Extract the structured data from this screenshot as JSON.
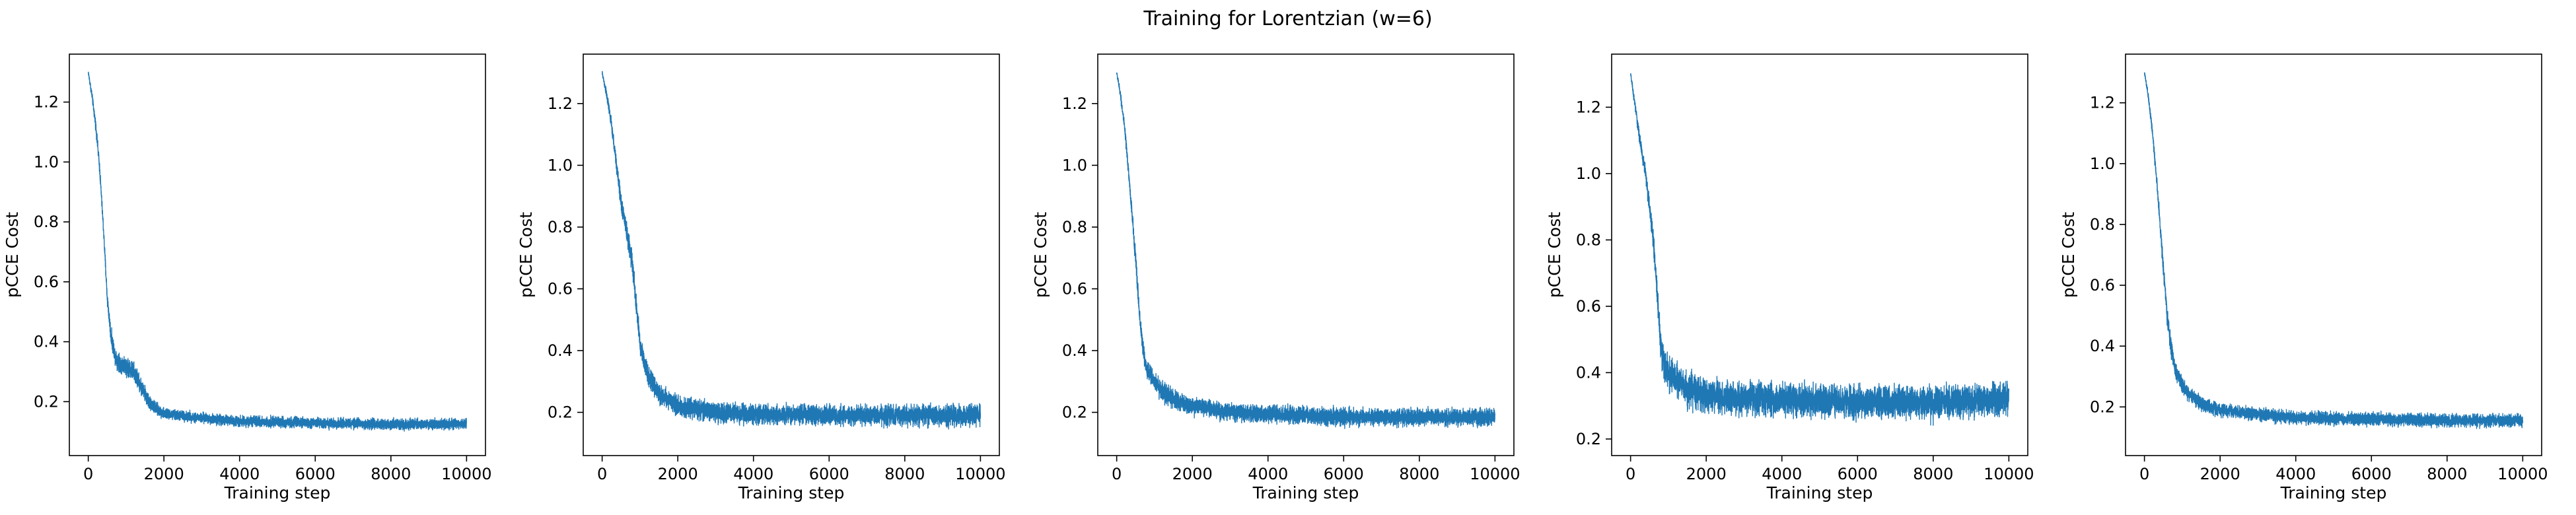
{
  "figure": {
    "suptitle": "Training for Lorentzian (w=6)",
    "line_color": "#1f77b4"
  },
  "chart_data": [
    {
      "type": "line",
      "xlabel": "Training step",
      "ylabel": "pCCE Cost",
      "xlim": [
        -500,
        10500
      ],
      "ylim": [
        0.02,
        1.36
      ],
      "xticks": [
        0,
        2000,
        4000,
        6000,
        8000,
        10000
      ],
      "yticks": [
        0.2,
        0.4,
        0.6,
        0.8,
        1.0,
        1.2
      ],
      "ytick_labels": [
        "0.2",
        "0.4",
        "0.6",
        "0.8",
        "1.0",
        "1.2"
      ],
      "grid": false,
      "series": [
        {
          "x": [
            0,
            100,
            200,
            300,
            400,
            500,
            600,
            700,
            800,
            1000,
            1200,
            1400,
            1600,
            1800,
            2000,
            3000,
            4000,
            6000,
            8000,
            10000
          ],
          "y": [
            1.3,
            1.22,
            1.12,
            0.98,
            0.78,
            0.55,
            0.42,
            0.36,
            0.33,
            0.32,
            0.3,
            0.25,
            0.2,
            0.175,
            0.16,
            0.145,
            0.135,
            0.128,
            0.125,
            0.125
          ],
          "band_spread": [
            0.01,
            0.02,
            0.025,
            0.03,
            0.03,
            0.035,
            0.04,
            0.04,
            0.045,
            0.045,
            0.045,
            0.04,
            0.035,
            0.03,
            0.025,
            0.025,
            0.025,
            0.025,
            0.025,
            0.025
          ]
        }
      ]
    },
    {
      "type": "line",
      "xlabel": "Training step",
      "ylabel": "pCCE Cost",
      "xlim": [
        -500,
        10500
      ],
      "ylim": [
        0.06,
        1.36
      ],
      "xticks": [
        0,
        2000,
        4000,
        6000,
        8000,
        10000
      ],
      "yticks": [
        0.2,
        0.4,
        0.6,
        0.8,
        1.0,
        1.2
      ],
      "ytick_labels": [
        "0.2",
        "0.4",
        "0.6",
        "0.8",
        "1.0",
        "1.2"
      ],
      "grid": false,
      "series": [
        {
          "x": [
            0,
            100,
            200,
            300,
            400,
            500,
            600,
            700,
            800,
            900,
            1000,
            1200,
            1500,
            2000,
            3000,
            4000,
            6000,
            8000,
            10000
          ],
          "y": [
            1.3,
            1.24,
            1.17,
            1.08,
            0.98,
            0.88,
            0.82,
            0.75,
            0.68,
            0.55,
            0.42,
            0.32,
            0.26,
            0.22,
            0.2,
            0.195,
            0.19,
            0.19,
            0.19
          ],
          "band_spread": [
            0.01,
            0.02,
            0.025,
            0.03,
            0.035,
            0.04,
            0.045,
            0.05,
            0.05,
            0.05,
            0.05,
            0.05,
            0.045,
            0.045,
            0.045,
            0.045,
            0.045,
            0.045,
            0.05
          ]
        }
      ]
    },
    {
      "type": "line",
      "xlabel": "Training step",
      "ylabel": "pCCE Cost",
      "xlim": [
        -500,
        10500
      ],
      "ylim": [
        0.06,
        1.36
      ],
      "xticks": [
        0,
        2000,
        4000,
        6000,
        8000,
        10000
      ],
      "yticks": [
        0.2,
        0.4,
        0.6,
        0.8,
        1.0,
        1.2
      ],
      "ytick_labels": [
        "0.2",
        "0.4",
        "0.6",
        "0.8",
        "1.0",
        "1.2"
      ],
      "grid": false,
      "series": [
        {
          "x": [
            0,
            100,
            200,
            300,
            400,
            500,
            600,
            700,
            800,
            1000,
            1200,
            1500,
            2000,
            3000,
            4000,
            6000,
            8000,
            10000
          ],
          "y": [
            1.3,
            1.23,
            1.13,
            1.0,
            0.85,
            0.7,
            0.52,
            0.4,
            0.34,
            0.3,
            0.27,
            0.24,
            0.22,
            0.2,
            0.195,
            0.185,
            0.185,
            0.185
          ],
          "band_spread": [
            0.01,
            0.02,
            0.025,
            0.03,
            0.035,
            0.04,
            0.045,
            0.045,
            0.045,
            0.045,
            0.045,
            0.045,
            0.04,
            0.04,
            0.04,
            0.04,
            0.04,
            0.04
          ]
        }
      ]
    },
    {
      "type": "line",
      "xlabel": "Training step",
      "ylabel": "pCCE Cost",
      "xlim": [
        -500,
        10500
      ],
      "ylim": [
        0.15,
        1.36
      ],
      "xticks": [
        0,
        2000,
        4000,
        6000,
        8000,
        10000
      ],
      "yticks": [
        0.2,
        0.4,
        0.6,
        0.8,
        1.0,
        1.2
      ],
      "ytick_labels": [
        "0.2",
        "0.4",
        "0.6",
        "0.8",
        "1.0",
        "1.2"
      ],
      "grid": false,
      "series": [
        {
          "x": [
            0,
            100,
            200,
            300,
            400,
            500,
            600,
            700,
            800,
            900,
            1000,
            1200,
            1500,
            2000,
            3000,
            4000,
            6000,
            8000,
            10000
          ],
          "y": [
            1.3,
            1.22,
            1.14,
            1.06,
            1.0,
            0.9,
            0.8,
            0.65,
            0.48,
            0.42,
            0.4,
            0.38,
            0.35,
            0.33,
            0.32,
            0.32,
            0.31,
            0.31,
            0.32
          ],
          "band_spread": [
            0.01,
            0.02,
            0.025,
            0.03,
            0.035,
            0.04,
            0.045,
            0.05,
            0.06,
            0.07,
            0.07,
            0.07,
            0.07,
            0.07,
            0.07,
            0.07,
            0.07,
            0.07,
            0.07
          ]
        }
      ]
    },
    {
      "type": "line",
      "xlabel": "Training step",
      "ylabel": "pCCE Cost",
      "xlim": [
        -500,
        10500
      ],
      "ylim": [
        0.04,
        1.36
      ],
      "xticks": [
        0,
        2000,
        4000,
        6000,
        8000,
        10000
      ],
      "yticks": [
        0.2,
        0.4,
        0.6,
        0.8,
        1.0,
        1.2
      ],
      "ytick_labels": [
        "0.2",
        "0.4",
        "0.6",
        "0.8",
        "1.0",
        "1.2"
      ],
      "grid": false,
      "series": [
        {
          "x": [
            0,
            100,
            200,
            300,
            400,
            500,
            600,
            700,
            800,
            1000,
            1200,
            1500,
            2000,
            3000,
            4000,
            6000,
            8000,
            10000
          ],
          "y": [
            1.3,
            1.22,
            1.12,
            0.98,
            0.82,
            0.66,
            0.5,
            0.4,
            0.33,
            0.27,
            0.24,
            0.21,
            0.19,
            0.175,
            0.165,
            0.16,
            0.155,
            0.155
          ],
          "band_spread": [
            0.01,
            0.02,
            0.025,
            0.03,
            0.035,
            0.04,
            0.04,
            0.04,
            0.04,
            0.04,
            0.035,
            0.035,
            0.03,
            0.03,
            0.03,
            0.03,
            0.03,
            0.03
          ]
        }
      ]
    }
  ]
}
